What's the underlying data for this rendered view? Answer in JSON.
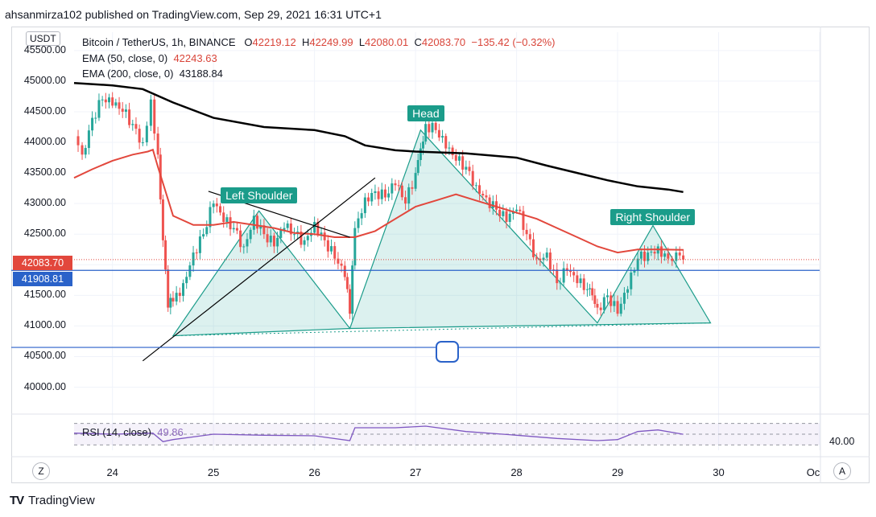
{
  "header": {
    "published_line": "ahsanmirza102 published on TradingView.com, Sep 29, 2021 16:31 UTC+1"
  },
  "legend": {
    "symbol": "Bitcoin / TetherUS, 1h, BINANCE",
    "open_label": "O",
    "open": "42219.12",
    "high_label": "H",
    "high": "42249.99",
    "low_label": "L",
    "low": "42080.01",
    "close_label": "C",
    "close": "42083.70",
    "change": "−135.42 (−0.32%)",
    "ema50_label": "EMA (50, close, 0)",
    "ema50_value": "42243.63",
    "ema200_label": "EMA (200, close, 0)",
    "ema200_value": "43188.84",
    "rsi_label": "RSI (14, close)",
    "rsi_value": "49.86"
  },
  "axis": {
    "currency": "USDT",
    "last_price": "42083.70",
    "line_price": "41908.81",
    "rsi_level": "40.00",
    "timezone_btn": "Z",
    "auto_btn": "A"
  },
  "footer": {
    "brand": "TradingView",
    "logo": "TV"
  },
  "colors": {
    "ema50": "#e2473c",
    "ema200": "#000000",
    "up": "#26a69a",
    "down": "#ef5350",
    "pattern": "#1b9c8a",
    "hline": "#2a62c9",
    "rsi": "#7e57c2"
  },
  "chart_data": {
    "type": "line",
    "title": "Bitcoin / TetherUS, 1h, BINANCE",
    "ylim": [
      39600,
      45800
    ],
    "xlim": [
      23.62,
      31.0
    ],
    "y_ticks": [
      "40000.00",
      "40500.00",
      "41000.00",
      "41500.00",
      "42000.00",
      "42500.00",
      "43000.00",
      "43500.00",
      "44000.00",
      "44500.00",
      "45000.00",
      "45500.00"
    ],
    "y_tick_values": [
      40000,
      40500,
      41000,
      41500,
      42000,
      42500,
      43000,
      43500,
      44000,
      44500,
      45000,
      45500
    ],
    "x_ticks": [
      "24",
      "25",
      "26",
      "27",
      "28",
      "29",
      "30",
      "Oc"
    ],
    "x_tick_values": [
      24,
      25,
      26,
      27,
      28,
      29,
      30,
      31
    ],
    "price_close": [
      [
        23.62,
        44100
      ],
      [
        23.7,
        43800
      ],
      [
        23.8,
        44400
      ],
      [
        23.9,
        44700
      ],
      [
        24.0,
        44600
      ],
      [
        24.1,
        44500
      ],
      [
        24.2,
        44300
      ],
      [
        24.3,
        44000
      ],
      [
        24.38,
        44700
      ],
      [
        24.45,
        43800
      ],
      [
        24.5,
        42400
      ],
      [
        24.55,
        41300
      ],
      [
        24.6,
        41400
      ],
      [
        24.7,
        41700
      ],
      [
        24.8,
        42200
      ],
      [
        24.9,
        42500
      ],
      [
        25.0,
        43000
      ],
      [
        25.1,
        42700
      ],
      [
        25.2,
        42600
      ],
      [
        25.3,
        42300
      ],
      [
        25.4,
        42800
      ],
      [
        25.5,
        42500
      ],
      [
        25.6,
        42300
      ],
      [
        25.7,
        42600
      ],
      [
        25.8,
        42500
      ],
      [
        25.9,
        42400
      ],
      [
        26.0,
        42700
      ],
      [
        26.1,
        42400
      ],
      [
        26.2,
        42100
      ],
      [
        26.3,
        41800
      ],
      [
        26.35,
        41200
      ],
      [
        26.4,
        42600
      ],
      [
        26.5,
        43100
      ],
      [
        26.6,
        43200
      ],
      [
        26.7,
        43100
      ],
      [
        26.8,
        43300
      ],
      [
        26.9,
        43000
      ],
      [
        27.0,
        43500
      ],
      [
        27.05,
        43900
      ],
      [
        27.1,
        44300
      ],
      [
        27.2,
        44200
      ],
      [
        27.3,
        43900
      ],
      [
        27.4,
        43700
      ],
      [
        27.5,
        43600
      ],
      [
        27.6,
        43300
      ],
      [
        27.7,
        43100
      ],
      [
        27.8,
        42900
      ],
      [
        27.9,
        42700
      ],
      [
        28.0,
        42900
      ],
      [
        28.1,
        42500
      ],
      [
        28.2,
        42100
      ],
      [
        28.3,
        42200
      ],
      [
        28.4,
        41700
      ],
      [
        28.5,
        41900
      ],
      [
        28.6,
        41700
      ],
      [
        28.7,
        41600
      ],
      [
        28.75,
        41500
      ],
      [
        28.8,
        41300
      ],
      [
        28.9,
        41500
      ],
      [
        29.0,
        41200
      ],
      [
        29.1,
        41600
      ],
      [
        29.2,
        42100
      ],
      [
        29.3,
        42200
      ],
      [
        29.4,
        42300
      ],
      [
        29.5,
        42100
      ],
      [
        29.58,
        42200
      ],
      [
        29.65,
        42084
      ]
    ],
    "series": [
      {
        "name": "EMA (50, close, 0)",
        "values": [
          [
            23.62,
            43420
          ],
          [
            23.8,
            43560
          ],
          [
            24.0,
            43700
          ],
          [
            24.2,
            43800
          ],
          [
            24.35,
            43850
          ],
          [
            24.4,
            43880
          ],
          [
            24.45,
            43600
          ],
          [
            24.6,
            42800
          ],
          [
            24.8,
            42650
          ],
          [
            25.0,
            42650
          ],
          [
            25.2,
            42700
          ],
          [
            25.4,
            42650
          ],
          [
            25.6,
            42600
          ],
          [
            25.8,
            42520
          ],
          [
            26.0,
            42500
          ],
          [
            26.2,
            42450
          ],
          [
            26.4,
            42450
          ],
          [
            26.6,
            42550
          ],
          [
            26.8,
            42750
          ],
          [
            27.0,
            42950
          ],
          [
            27.2,
            43050
          ],
          [
            27.4,
            43150
          ],
          [
            27.6,
            43050
          ],
          [
            27.8,
            42950
          ],
          [
            28.0,
            42850
          ],
          [
            28.2,
            42750
          ],
          [
            28.4,
            42600
          ],
          [
            28.6,
            42450
          ],
          [
            28.8,
            42300
          ],
          [
            29.0,
            42200
          ],
          [
            29.2,
            42250
          ],
          [
            29.4,
            42250
          ],
          [
            29.65,
            42244
          ]
        ]
      },
      {
        "name": "EMA (200, close, 0)",
        "values": [
          [
            23.62,
            44970
          ],
          [
            24.0,
            44930
          ],
          [
            24.3,
            44870
          ],
          [
            24.6,
            44650
          ],
          [
            25.0,
            44400
          ],
          [
            25.5,
            44250
          ],
          [
            26.0,
            44200
          ],
          [
            26.3,
            44100
          ],
          [
            26.5,
            43950
          ],
          [
            26.8,
            43870
          ],
          [
            27.0,
            43850
          ],
          [
            27.5,
            43820
          ],
          [
            28.0,
            43750
          ],
          [
            28.3,
            43620
          ],
          [
            28.6,
            43500
          ],
          [
            28.9,
            43380
          ],
          [
            29.2,
            43280
          ],
          [
            29.5,
            43230
          ],
          [
            29.65,
            43189
          ]
        ]
      },
      {
        "name": "RSI (14, close)",
        "values": [
          [
            23.62,
            52
          ],
          [
            24.0,
            50
          ],
          [
            24.4,
            52
          ],
          [
            24.5,
            36
          ],
          [
            24.6,
            40
          ],
          [
            25.0,
            50
          ],
          [
            25.5,
            48
          ],
          [
            26.0,
            47
          ],
          [
            26.35,
            38
          ],
          [
            26.4,
            62
          ],
          [
            26.8,
            62
          ],
          [
            27.1,
            65
          ],
          [
            27.5,
            55
          ],
          [
            28.0,
            48
          ],
          [
            28.4,
            42
          ],
          [
            28.8,
            38
          ],
          [
            29.0,
            40
          ],
          [
            29.2,
            55
          ],
          [
            29.4,
            58
          ],
          [
            29.65,
            49.86
          ]
        ]
      }
    ],
    "horizontal_levels": [
      41908.81,
      40650
    ],
    "last_price": 42083.7,
    "rsi_ylim": [
      20,
      80
    ],
    "rsi_bands": [
      30,
      50,
      70
    ],
    "annotations": [
      {
        "text": "Left Shoulder",
        "x": 25.45,
        "y": 43130
      },
      {
        "text": "Head",
        "x": 27.1,
        "y": 44470
      },
      {
        "text": "Right Shoulder",
        "x": 29.35,
        "y": 42780
      }
    ],
    "pattern_polygon": [
      [
        24.6,
        40840
      ],
      [
        25.45,
        42880
      ],
      [
        26.35,
        40960
      ],
      [
        27.05,
        44200
      ],
      [
        28.8,
        41050
      ],
      [
        29.35,
        42640
      ],
      [
        29.92,
        41050
      ],
      [
        26.35,
        40960
      ]
    ],
    "trendlines": [
      {
        "name": "support trendline",
        "points": [
          [
            24.3,
            40430
          ],
          [
            26.6,
            43420
          ]
        ]
      },
      {
        "name": "shoulder trendline",
        "points": [
          [
            24.95,
            43200
          ],
          [
            26.35,
            42450
          ]
        ]
      }
    ]
  }
}
